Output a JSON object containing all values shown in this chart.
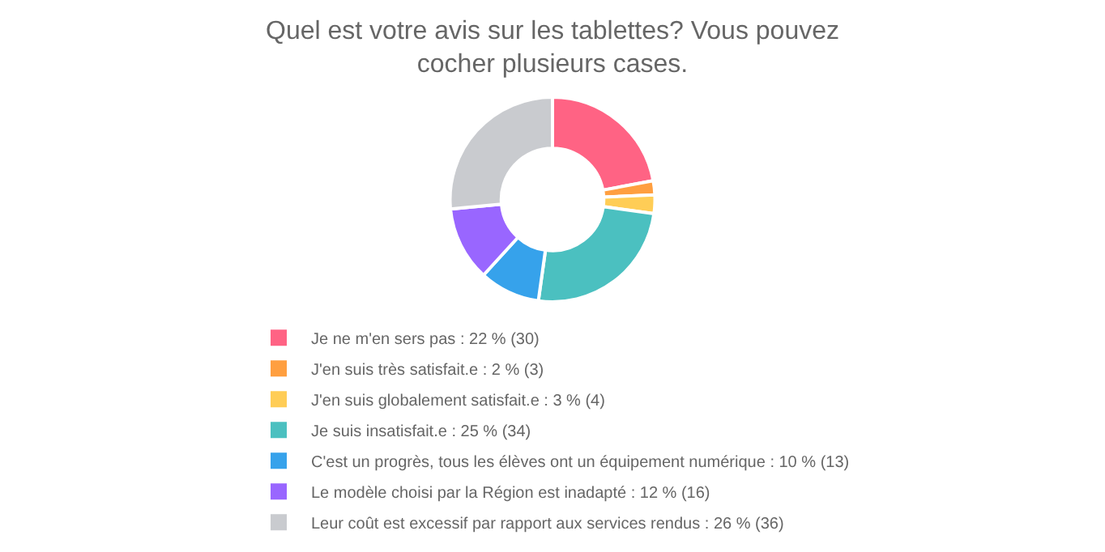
{
  "chart_data": {
    "type": "donut",
    "title": "Quel est votre avis sur les tablettes? Vous pouvez cocher plusieurs cases.",
    "categories": [
      "Je ne m'en sers pas : 22 % (30)",
      "J'en suis très satisfait.e : 2 % (3)",
      "J'en suis globalement satisfait.e : 3 % (4)",
      "Je suis insatisfait.e : 25 % (34)",
      "C'est un progrès, tous les élèves ont un équipement numérique : 10 % (13)",
      "Le modèle choisi par la Région est inadapté : 12 % (16)",
      "Leur coût est excessif par rapport aux services rendus : 26 % (36)"
    ],
    "values": [
      30,
      3,
      4,
      34,
      13,
      16,
      36
    ],
    "colors": [
      "#ff6384",
      "#ff9f40",
      "#ffcd56",
      "#4bc0c0",
      "#36a2eb",
      "#9966ff",
      "#c9cbcf"
    ],
    "legend": "bottom"
  }
}
